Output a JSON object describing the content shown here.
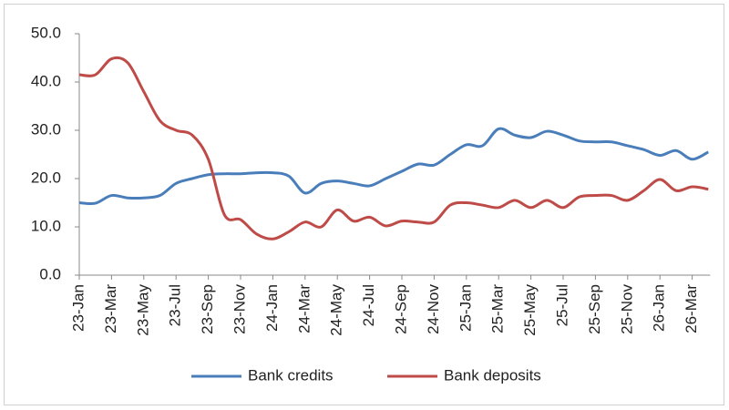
{
  "chart_data": {
    "type": "line",
    "categories": [
      "23-Jan",
      null,
      "23-Mar",
      null,
      "23-May",
      null,
      "23-Jul",
      null,
      "23-Sep",
      null,
      "23-Nov",
      null,
      "24-Jan",
      null,
      "24-Mar",
      null,
      "24-May",
      null,
      "24-Jul",
      null,
      "24-Sep",
      null,
      "24-Nov",
      null,
      "25-Jan",
      null,
      "25-Mar",
      null,
      "25-May",
      null,
      "25-Jul",
      null,
      "25-Sep",
      null,
      "25-Nov",
      null,
      "26-Jan",
      null,
      "26-Mar",
      null
    ],
    "series": [
      {
        "name": "Bank credits",
        "color": "#4a7ebb",
        "values": [
          15.0,
          14.9,
          16.5,
          16.0,
          16.0,
          16.5,
          19.0,
          20.0,
          20.8,
          21.0,
          21.0,
          21.2,
          21.2,
          20.5,
          17.0,
          19.0,
          19.5,
          19.0,
          18.5,
          20.0,
          21.5,
          23.0,
          22.8,
          25.0,
          27.0,
          26.8,
          30.3,
          29.0,
          28.5,
          29.8,
          29.0,
          27.8,
          27.6,
          27.6,
          26.8,
          26.0,
          24.8,
          25.8,
          24.0,
          25.5
        ]
      },
      {
        "name": "Bank deposits",
        "color": "#be4b48",
        "values": [
          41.5,
          41.5,
          44.8,
          44.0,
          38.0,
          32.0,
          30.0,
          29.0,
          24.0,
          12.5,
          11.5,
          8.5,
          7.5,
          9.0,
          11.0,
          10.0,
          13.5,
          11.2,
          12.0,
          10.2,
          11.2,
          11.0,
          11.0,
          14.5,
          15.0,
          14.5,
          14.0,
          15.5,
          14.0,
          15.5,
          14.0,
          16.2,
          16.5,
          16.5,
          15.5,
          17.5,
          19.8,
          17.5,
          18.3,
          17.8
        ]
      }
    ],
    "ylim": [
      0,
      50
    ],
    "yticks": [
      {
        "value": 0,
        "label": "0.0"
      },
      {
        "value": 10,
        "label": "10.0"
      },
      {
        "value": 20,
        "label": "20.0"
      },
      {
        "value": 30,
        "label": "30.0"
      },
      {
        "value": 40,
        "label": "40.0"
      },
      {
        "value": 50,
        "label": "50.0"
      }
    ],
    "grid": false,
    "legend": "bottom"
  }
}
